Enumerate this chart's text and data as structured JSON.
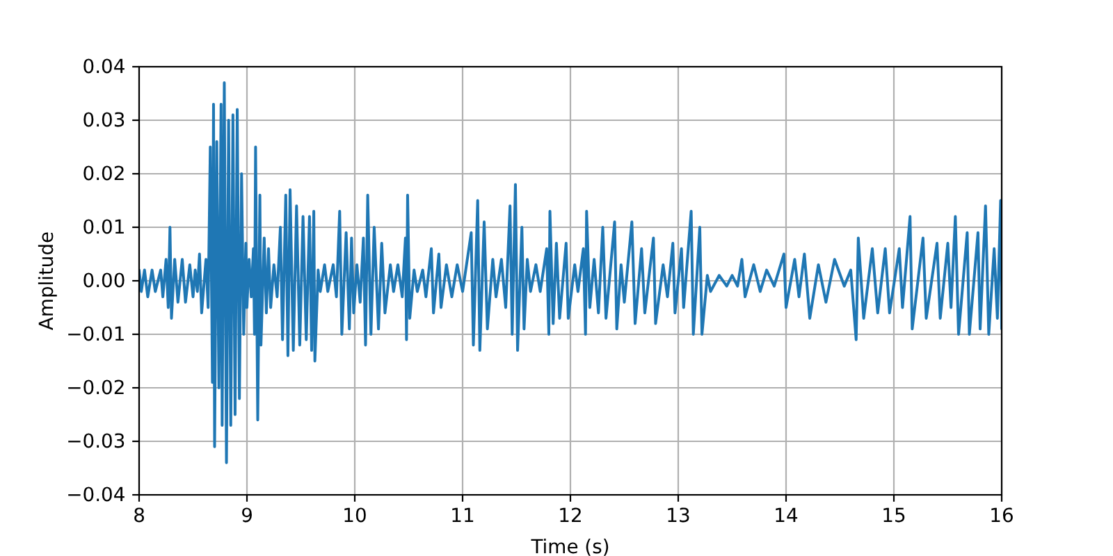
{
  "chart_data": {
    "type": "line",
    "xlabel": "Time (s)",
    "ylabel": "Amplitude",
    "color": "#1f77b4",
    "x": [
      8.0,
      8.02,
      8.05,
      8.08,
      8.12,
      8.15,
      8.2,
      8.22,
      8.25,
      8.27,
      8.286,
      8.3,
      8.33,
      8.36,
      8.4,
      8.43,
      8.47,
      8.5,
      8.52,
      8.54,
      8.56,
      8.58,
      8.62,
      8.64,
      8.66,
      8.68,
      8.69,
      8.7,
      8.72,
      8.74,
      8.76,
      8.77,
      8.79,
      8.81,
      8.83,
      8.85,
      8.87,
      8.89,
      8.91,
      8.93,
      8.95,
      8.97,
      8.99,
      9.0,
      9.02,
      9.04,
      9.06,
      9.07,
      9.08,
      9.1,
      9.12,
      9.13,
      9.16,
      9.18,
      9.2,
      9.22,
      9.25,
      9.28,
      9.31,
      9.33,
      9.36,
      9.38,
      9.4,
      9.43,
      9.46,
      9.49,
      9.52,
      9.55,
      9.58,
      9.6,
      9.62,
      9.63,
      9.66,
      9.68,
      9.72,
      9.75,
      9.8,
      9.83,
      9.86,
      9.88,
      9.92,
      9.95,
      9.97,
      9.99,
      10.02,
      10.05,
      10.08,
      10.1,
      10.12,
      10.15,
      10.18,
      10.22,
      10.25,
      10.28,
      10.33,
      10.36,
      10.4,
      10.44,
      10.47,
      10.48,
      10.49,
      10.51,
      10.55,
      10.58,
      10.63,
      10.66,
      10.71,
      10.73,
      10.78,
      10.8,
      10.85,
      10.9,
      10.95,
      11.0,
      11.08,
      11.1,
      11.14,
      11.16,
      11.2,
      11.23,
      11.28,
      11.31,
      11.36,
      11.4,
      11.44,
      11.46,
      11.49,
      11.51,
      11.55,
      11.57,
      11.6,
      11.63,
      11.68,
      11.72,
      11.78,
      11.8,
      11.81,
      11.84,
      11.87,
      11.9,
      11.96,
      11.98,
      12.04,
      12.07,
      12.12,
      12.14,
      12.15,
      12.18,
      12.22,
      12.26,
      12.3,
      12.33,
      12.41,
      12.43,
      12.47,
      12.5,
      12.57,
      12.6,
      12.66,
      12.69,
      12.77,
      12.79,
      12.86,
      12.9,
      12.95,
      12.97,
      13.03,
      13.05,
      13.12,
      13.14,
      13.2,
      13.22,
      13.27,
      13.3,
      13.38,
      13.45,
      13.5,
      13.55,
      13.59,
      13.62,
      13.7,
      13.76,
      13.82,
      13.89,
      13.98,
      14.0,
      14.08,
      14.12,
      14.17,
      14.22,
      14.3,
      14.37,
      14.45,
      14.54,
      14.6,
      14.65,
      14.67,
      14.72,
      14.8,
      14.85,
      14.92,
      14.96,
      15.05,
      15.08,
      15.15,
      15.17,
      15.27,
      15.3,
      15.4,
      15.43,
      15.5,
      15.53,
      15.57,
      15.6,
      15.68,
      15.7,
      15.78,
      15.8,
      15.85,
      15.88,
      15.93,
      15.96,
      15.99,
      16.0
    ],
    "values": [
      0.002,
      -0.002,
      0.002,
      -0.003,
      0.002,
      -0.002,
      0.002,
      -0.003,
      0.004,
      -0.005,
      0.01,
      -0.007,
      0.004,
      -0.004,
      0.004,
      -0.004,
      0.003,
      -0.003,
      0.002,
      -0.002,
      0.005,
      -0.006,
      0.004,
      -0.005,
      0.025,
      -0.019,
      0.033,
      -0.031,
      0.026,
      -0.02,
      0.033,
      -0.027,
      0.037,
      -0.034,
      0.03,
      -0.027,
      0.031,
      -0.025,
      0.032,
      -0.022,
      0.02,
      -0.01,
      0.007,
      -0.005,
      0.004,
      -0.003,
      0.006,
      -0.01,
      0.025,
      -0.026,
      0.016,
      -0.012,
      0.008,
      -0.006,
      0.006,
      -0.005,
      0.003,
      -0.003,
      0.01,
      -0.011,
      0.016,
      -0.014,
      0.017,
      -0.013,
      0.014,
      -0.012,
      0.012,
      -0.011,
      0.012,
      -0.013,
      0.013,
      -0.015,
      0.002,
      -0.002,
      0.003,
      -0.002,
      0.003,
      -0.003,
      0.013,
      -0.01,
      0.009,
      -0.009,
      0.008,
      -0.006,
      0.003,
      -0.004,
      0.008,
      -0.012,
      0.016,
      -0.01,
      0.01,
      -0.009,
      0.007,
      -0.006,
      0.003,
      -0.002,
      0.003,
      -0.003,
      0.008,
      -0.011,
      0.016,
      -0.007,
      0.002,
      -0.002,
      0.002,
      -0.003,
      0.006,
      -0.006,
      0.005,
      -0.005,
      0.003,
      -0.003,
      0.003,
      -0.002,
      0.009,
      -0.012,
      0.015,
      -0.013,
      0.011,
      -0.009,
      0.004,
      -0.003,
      0.004,
      -0.005,
      0.014,
      -0.01,
      0.018,
      -0.013,
      0.01,
      -0.009,
      0.004,
      -0.002,
      0.003,
      -0.002,
      0.006,
      -0.01,
      0.013,
      -0.008,
      0.007,
      -0.007,
      0.007,
      -0.007,
      0.003,
      -0.002,
      0.006,
      -0.01,
      0.013,
      -0.005,
      0.004,
      -0.006,
      0.01,
      -0.007,
      0.011,
      -0.009,
      0.003,
      -0.004,
      0.011,
      -0.008,
      0.006,
      -0.006,
      0.008,
      -0.008,
      0.003,
      -0.003,
      0.007,
      -0.006,
      0.006,
      -0.005,
      0.013,
      -0.01,
      0.01,
      -0.01,
      0.001,
      -0.002,
      0.001,
      -0.001,
      0.001,
      -0.001,
      0.004,
      -0.003,
      0.003,
      -0.002,
      0.002,
      -0.001,
      0.005,
      -0.005,
      0.004,
      -0.003,
      0.005,
      -0.007,
      0.003,
      -0.004,
      0.004,
      -0.001,
      0.002,
      -0.011,
      0.008,
      -0.007,
      0.006,
      -0.006,
      0.006,
      -0.006,
      0.006,
      -0.005,
      0.012,
      -0.009,
      0.008,
      -0.007,
      0.007,
      -0.007,
      0.007,
      -0.005,
      0.012,
      -0.01,
      0.009,
      -0.01,
      0.009,
      -0.009,
      0.014,
      -0.01,
      0.006,
      -0.007,
      0.015,
      -0.009
    ],
    "xlim": [
      8,
      16
    ],
    "xticks": [
      8,
      9,
      10,
      11,
      12,
      13,
      14,
      15,
      16
    ],
    "ylim": [
      -0.04,
      0.04
    ],
    "yticks": [
      {
        "value": -0.04,
        "label": "−0.04"
      },
      {
        "value": -0.03,
        "label": "−0.03"
      },
      {
        "value": -0.02,
        "label": "−0.02"
      },
      {
        "value": -0.01,
        "label": "−0.01"
      },
      {
        "value": 0,
        "label": "0.00"
      },
      {
        "value": 0.01,
        "label": "0.01"
      },
      {
        "value": 0.02,
        "label": "0.02"
      },
      {
        "value": 0.03,
        "label": "0.03"
      },
      {
        "value": 0.04,
        "label": "0.04"
      }
    ],
    "grid": true
  }
}
